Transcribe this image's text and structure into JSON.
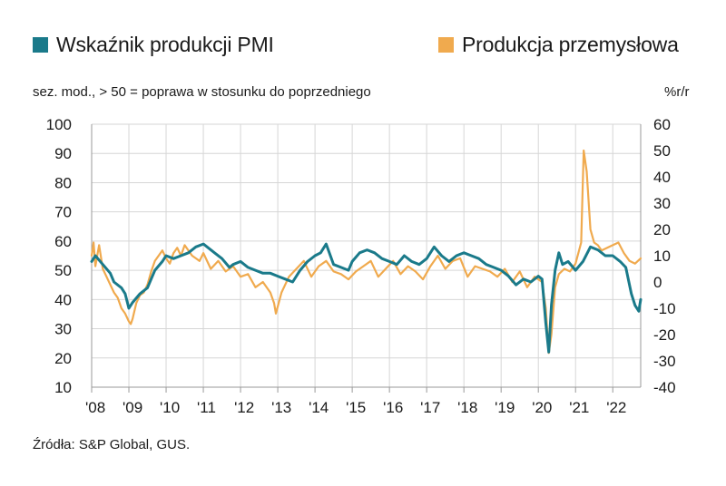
{
  "legend": {
    "pmi_label": "Wskaźnik produkcji PMI",
    "ip_label": "Produkcja przemysłowa"
  },
  "subtitle": {
    "left": "sez. mod., > 50 = poprawa w stosunku do poprzedniego",
    "right": "%r/r"
  },
  "source": "Źródła:  S&P Global, GUS.",
  "colors": {
    "pmi": "#1a7a8a",
    "ip": "#f0aa4e",
    "grid": "#d6d6d6",
    "axis": "#999999"
  },
  "chart_data": {
    "type": "line",
    "x_start": 2008.0,
    "x_end": 2022.75,
    "x_ticks": [
      "'08",
      "'09",
      "'10",
      "'11",
      "'12",
      "'13",
      "'14",
      "'15",
      "'16",
      "'17",
      "'18",
      "'19",
      "'20",
      "'21",
      "'22"
    ],
    "y_left": {
      "min": 10,
      "max": 100,
      "ticks": [
        10,
        20,
        30,
        40,
        50,
        60,
        70,
        80,
        90,
        100
      ]
    },
    "y_right": {
      "min": -40,
      "max": 60,
      "ticks": [
        -40,
        -30,
        -20,
        -10,
        0,
        10,
        20,
        30,
        40,
        50,
        60
      ]
    },
    "grid": true,
    "legend_position": "top",
    "series": [
      {
        "name": "Wskaźnik produkcji PMI",
        "axis": "left",
        "x": [
          2008.0,
          2008.1,
          2008.3,
          2008.5,
          2008.6,
          2008.8,
          2008.9,
          2009.0,
          2009.1,
          2009.3,
          2009.5,
          2009.7,
          2009.9,
          2010.0,
          2010.2,
          2010.4,
          2010.6,
          2010.8,
          2011.0,
          2011.1,
          2011.3,
          2011.5,
          2011.7,
          2011.8,
          2012.0,
          2012.2,
          2012.4,
          2012.6,
          2012.8,
          2013.0,
          2013.2,
          2013.4,
          2013.6,
          2013.8,
          2014.0,
          2014.15,
          2014.3,
          2014.5,
          2014.7,
          2014.9,
          2015.0,
          2015.2,
          2015.4,
          2015.6,
          2015.8,
          2016.0,
          2016.2,
          2016.4,
          2016.6,
          2016.8,
          2017.0,
          2017.2,
          2017.4,
          2017.6,
          2017.8,
          2018.0,
          2018.2,
          2018.4,
          2018.6,
          2018.8,
          2019.0,
          2019.2,
          2019.4,
          2019.6,
          2019.8,
          2020.0,
          2020.1,
          2020.2,
          2020.28,
          2020.35,
          2020.45,
          2020.55,
          2020.65,
          2020.8,
          2021.0,
          2021.2,
          2021.4,
          2021.6,
          2021.8,
          2022.0,
          2022.2,
          2022.35,
          2022.5,
          2022.6,
          2022.7,
          2022.75
        ],
        "y": [
          53,
          55,
          52,
          49,
          46,
          44,
          42,
          37,
          39,
          42,
          44,
          50,
          53,
          55,
          54,
          55,
          56,
          58,
          59,
          58,
          56,
          54,
          51,
          52,
          53,
          51,
          50,
          49,
          49,
          48,
          47,
          46,
          50,
          53,
          55,
          56,
          59,
          52,
          51,
          50,
          53,
          56,
          57,
          56,
          54,
          53,
          52,
          55,
          53,
          52,
          54,
          58,
          55,
          53,
          55,
          56,
          55,
          54,
          52,
          51,
          50,
          48,
          45,
          47,
          46,
          48,
          47,
          32,
          22,
          38,
          50,
          56,
          52,
          53,
          50,
          53,
          58,
          57,
          55,
          55,
          53,
          51,
          42,
          38,
          36,
          40
        ]
      },
      {
        "name": "Produkcja przemysłowa",
        "axis": "right",
        "x": [
          2008.0,
          2008.05,
          2008.1,
          2008.2,
          2008.3,
          2008.4,
          2008.5,
          2008.6,
          2008.7,
          2008.8,
          2008.9,
          2009.0,
          2009.05,
          2009.1,
          2009.2,
          2009.3,
          2009.4,
          2009.5,
          2009.6,
          2009.7,
          2009.8,
          2009.9,
          2010.0,
          2010.1,
          2010.2,
          2010.3,
          2010.4,
          2010.5,
          2010.6,
          2010.7,
          2010.8,
          2010.9,
          2011.0,
          2011.2,
          2011.4,
          2011.6,
          2011.8,
          2012.0,
          2012.2,
          2012.4,
          2012.6,
          2012.8,
          2012.9,
          2012.95,
          2013.1,
          2013.3,
          2013.5,
          2013.7,
          2013.9,
          2014.1,
          2014.3,
          2014.5,
          2014.7,
          2014.9,
          2015.1,
          2015.3,
          2015.5,
          2015.7,
          2015.9,
          2016.1,
          2016.3,
          2016.5,
          2016.7,
          2016.9,
          2017.1,
          2017.3,
          2017.5,
          2017.7,
          2017.9,
          2018.1,
          2018.3,
          2018.5,
          2018.7,
          2018.9,
          2019.1,
          2019.3,
          2019.5,
          2019.7,
          2019.9,
          2020.1,
          2020.2,
          2020.28,
          2020.35,
          2020.45,
          2020.55,
          2020.7,
          2020.85,
          2021.0,
          2021.15,
          2021.22,
          2021.3,
          2021.4,
          2021.5,
          2021.6,
          2021.7,
          2021.85,
          2022.0,
          2022.15,
          2022.3,
          2022.45,
          2022.6,
          2022.75
        ],
        "y": [
          10,
          15,
          6,
          14,
          5,
          2,
          -1,
          -4,
          -6,
          -10,
          -12,
          -15,
          -16,
          -14,
          -8,
          -5,
          -4,
          -1,
          4,
          8,
          10,
          12,
          9,
          7,
          11,
          13,
          10,
          14,
          12,
          10,
          9,
          8,
          11,
          5,
          8,
          4,
          6,
          2,
          3,
          -2,
          0,
          -4,
          -8,
          -12,
          -4,
          2,
          5,
          8,
          2,
          6,
          8,
          4,
          3,
          1,
          4,
          6,
          8,
          2,
          5,
          8,
          3,
          6,
          4,
          1,
          6,
          10,
          5,
          8,
          9,
          2,
          6,
          5,
          4,
          2,
          5,
          0,
          4,
          -2,
          2,
          0,
          -10,
          -27,
          -20,
          -2,
          3,
          5,
          4,
          7,
          15,
          50,
          42,
          20,
          15,
          14,
          12,
          13,
          14,
          15,
          11,
          8,
          7,
          9
        ]
      }
    ]
  }
}
